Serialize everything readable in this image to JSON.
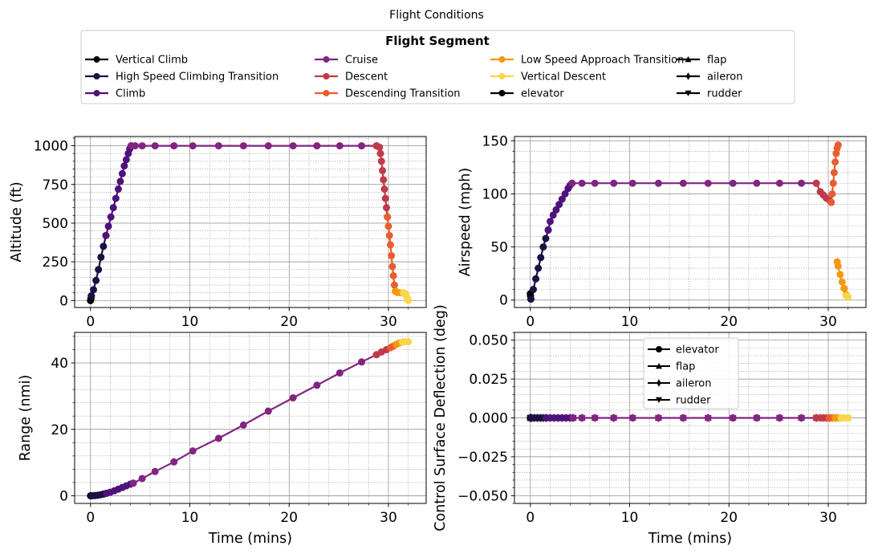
{
  "figure_title": "Flight Conditions",
  "legend": {
    "title": "Flight Segment",
    "columns": [
      [
        {
          "label": "Vertical Climb",
          "color": "#000004",
          "marker": "circle"
        },
        {
          "label": "High Speed Climbing Transition",
          "color": "#1c1044",
          "marker": "circle"
        },
        {
          "label": "Climb",
          "color": "#4f127b",
          "marker": "circle"
        }
      ],
      [
        {
          "label": "Cruise",
          "color": "#812581",
          "marker": "circle"
        },
        {
          "label": "Descent",
          "color": "#c03a49",
          "marker": "circle"
        },
        {
          "label": "Descending Transition",
          "color": "#e95d2f",
          "marker": "circle"
        }
      ],
      [
        {
          "label": "Low Speed Approach Transition",
          "color": "#f4990f",
          "marker": "circle"
        },
        {
          "label": "Vertical Descent",
          "color": "#fbd54a",
          "marker": "circle"
        },
        {
          "label": " elevator",
          "color": "#000000",
          "marker": "circle"
        }
      ],
      [
        {
          "label": " flap",
          "color": "#000000",
          "marker": "triangle-up"
        },
        {
          "label": " aileron",
          "color": "#000000",
          "marker": "diamond"
        },
        {
          "label": " rudder",
          "color": "#000000",
          "marker": "triangle-down"
        }
      ]
    ]
  },
  "chart_data": [
    {
      "type": "line",
      "id": "altitude",
      "xlabel": "",
      "ylabel": "Altitude (ft)",
      "xlim": [
        -1.6,
        33.8
      ],
      "ylim": [
        -45,
        1060
      ],
      "xticks": [
        0,
        10,
        20,
        30
      ],
      "xtick_labels": [
        "0",
        "10",
        "20",
        "30"
      ],
      "yticks": [
        0,
        250,
        500,
        750,
        1000
      ],
      "ytick_labels": [
        "0",
        "250",
        "500",
        "750",
        "1000"
      ],
      "grid": true,
      "segments": [
        {
          "name": "Vertical Climb",
          "color": "#000004",
          "x": [
            0,
            0.02,
            0.05,
            0.08
          ],
          "y": [
            0,
            5,
            15,
            30
          ]
        },
        {
          "name": "High Speed Climbing Transition",
          "color": "#1c1044",
          "x": [
            0.08,
            0.3,
            0.55,
            0.8,
            1.05,
            1.3,
            1.55
          ],
          "y": [
            30,
            70,
            130,
            200,
            280,
            350,
            420
          ]
        },
        {
          "name": "Climb",
          "color": "#4f127b",
          "x": [
            1.55,
            1.8,
            2.05,
            2.3,
            2.55,
            2.8,
            3.0,
            3.2,
            3.4,
            3.6,
            3.8,
            3.95,
            4.1
          ],
          "y": [
            420,
            480,
            540,
            600,
            660,
            720,
            770,
            820,
            870,
            910,
            950,
            980,
            1000
          ]
        },
        {
          "name": "Cruise",
          "color": "#812581",
          "x": [
            4.1,
            4.5,
            5.2,
            6.5,
            8.4,
            10.3,
            12.9,
            15.4,
            17.9,
            20.4,
            22.8,
            25.1,
            27.3,
            28.8
          ],
          "y": [
            1000,
            1000,
            1000,
            1000,
            1000,
            1000,
            1000,
            1000,
            1000,
            1000,
            1000,
            1000,
            1000,
            1000
          ]
        },
        {
          "name": "Descent",
          "color": "#c03a49",
          "x": [
            28.8,
            29.1,
            29.2,
            29.3,
            29.4,
            29.5,
            29.6,
            29.7,
            29.8,
            29.9
          ],
          "y": [
            1000,
            990,
            950,
            900,
            840,
            780,
            720,
            660,
            600,
            540
          ]
        },
        {
          "name": "Descending Transition",
          "color": "#e95d2f",
          "x": [
            29.9,
            30.0,
            30.1,
            30.2,
            30.3,
            30.4,
            30.5,
            30.6,
            30.7
          ],
          "y": [
            540,
            480,
            420,
            360,
            290,
            220,
            160,
            100,
            60
          ]
        },
        {
          "name": "Low Speed Approach Transition",
          "color": "#f4990f",
          "x": [
            30.7,
            30.9,
            31.2,
            31.5
          ],
          "y": [
            60,
            52,
            50,
            50
          ]
        },
        {
          "name": "Vertical Descent",
          "color": "#fbd54a",
          "x": [
            31.5,
            31.7,
            31.8,
            31.9,
            32.0
          ],
          "y": [
            50,
            45,
            30,
            15,
            0
          ]
        }
      ]
    },
    {
      "type": "line",
      "id": "airspeed",
      "xlabel": "",
      "ylabel": "Airspeed (mph)",
      "xlim": [
        -1.6,
        33.8
      ],
      "ylim": [
        -7,
        154
      ],
      "xticks": [
        0,
        10,
        20,
        30
      ],
      "xtick_labels": [
        "0",
        "10",
        "20",
        "30"
      ],
      "yticks": [
        0,
        50,
        100,
        150
      ],
      "ytick_labels": [
        "0",
        "50",
        "100",
        "150"
      ],
      "grid": true,
      "segments": [
        {
          "name": "Vertical Climb",
          "color": "#000004",
          "x": [
            0,
            0.02,
            0.05
          ],
          "y": [
            6,
            4,
            1
          ]
        },
        {
          "name": "High Speed Climbing Transition",
          "color": "#1c1044",
          "x": [
            0.05,
            0.3,
            0.55,
            0.8,
            1.05,
            1.3,
            1.55,
            1.8
          ],
          "y": [
            1,
            10,
            20,
            30,
            40,
            50,
            58,
            66
          ]
        },
        {
          "name": "Climb",
          "color": "#4f127b",
          "x": [
            1.8,
            2.0,
            2.3,
            2.6,
            2.9,
            3.2,
            3.5,
            3.8,
            4.0,
            4.2
          ],
          "y": [
            66,
            74,
            80,
            85,
            90,
            95,
            100,
            105,
            108,
            110
          ]
        },
        {
          "name": "Cruise",
          "color": "#812581",
          "x": [
            4.2,
            5.2,
            6.5,
            8.4,
            10.3,
            12.9,
            15.4,
            17.9,
            20.4,
            22.8,
            25.1,
            27.3,
            28.8
          ],
          "y": [
            110,
            110,
            110,
            110,
            110,
            110,
            110,
            110,
            110,
            110,
            110,
            110,
            110
          ]
        },
        {
          "name": "Descent",
          "color": "#c03a49",
          "x": [
            28.8,
            29.2,
            29.5,
            29.8,
            30.1,
            30.3
          ],
          "y": [
            110,
            102,
            99,
            96,
            94,
            92
          ]
        },
        {
          "name": "Descending Transition",
          "color": "#e95d2f",
          "x": [
            30.3,
            30.4,
            30.5,
            30.6,
            30.7,
            30.8,
            30.9,
            31.0
          ],
          "y": [
            92,
            100,
            110,
            120,
            130,
            138,
            143,
            146
          ]
        },
        {
          "name": "Low Speed Approach Transition",
          "color": "#f4990f",
          "x": [
            30.9,
            31.0,
            31.2,
            31.4,
            31.6,
            31.8
          ],
          "y": [
            36,
            32,
            24,
            17,
            11,
            5
          ]
        },
        {
          "name": "Vertical Descent",
          "color": "#fbd54a",
          "x": [
            31.8,
            32.0
          ],
          "y": [
            4,
            3
          ]
        }
      ]
    },
    {
      "type": "line",
      "id": "range",
      "xlabel": "Time (mins)",
      "ylabel": "Range (nmi)",
      "xlim": [
        -1.6,
        33.8
      ],
      "ylim": [
        -2.3,
        49.2
      ],
      "xticks": [
        0,
        10,
        20,
        30
      ],
      "xtick_labels": [
        "0",
        "10",
        "20",
        "30"
      ],
      "yticks": [
        0,
        20,
        40
      ],
      "ytick_labels": [
        "0",
        "20",
        "40"
      ],
      "grid": true,
      "segments": [
        {
          "name": "Vertical Climb",
          "color": "#000004",
          "x": [
            0,
            0.05,
            0.1
          ],
          "y": [
            0,
            0,
            0
          ]
        },
        {
          "name": "High Speed Climbing Transition",
          "color": "#1c1044",
          "x": [
            0.1,
            0.4,
            0.7,
            1.0,
            1.3,
            1.6
          ],
          "y": [
            0,
            0.05,
            0.15,
            0.3,
            0.5,
            0.75
          ]
        },
        {
          "name": "Climb",
          "color": "#4f127b",
          "x": [
            1.6,
            2.0,
            2.4,
            2.8,
            3.2,
            3.6,
            4.0,
            4.3
          ],
          "y": [
            0.75,
            1.1,
            1.5,
            2.0,
            2.5,
            3.0,
            3.5,
            3.8
          ]
        },
        {
          "name": "Cruise",
          "color": "#812581",
          "x": [
            4.3,
            5.2,
            6.5,
            8.4,
            10.3,
            12.9,
            15.4,
            17.9,
            20.4,
            22.8,
            25.1,
            27.3,
            28.8
          ],
          "y": [
            3.8,
            5.2,
            7.3,
            10.2,
            13.5,
            17.3,
            21.3,
            25.5,
            29.5,
            33.3,
            37.0,
            40.3,
            42.5
          ]
        },
        {
          "name": "Descent",
          "color": "#c03a49",
          "x": [
            28.8,
            29.3,
            29.8,
            30.2
          ],
          "y": [
            42.5,
            43.3,
            44.0,
            44.6
          ]
        },
        {
          "name": "Descending Transition",
          "color": "#e95d2f",
          "x": [
            30.2,
            30.5,
            30.8
          ],
          "y": [
            44.6,
            45.1,
            45.6
          ]
        },
        {
          "name": "Low Speed Approach Transition",
          "color": "#f4990f",
          "x": [
            30.8,
            31.1,
            31.4
          ],
          "y": [
            45.6,
            46.0,
            46.3
          ]
        },
        {
          "name": "Vertical Descent",
          "color": "#fbd54a",
          "x": [
            31.4,
            31.7,
            32.0
          ],
          "y": [
            46.3,
            46.4,
            46.4
          ]
        }
      ]
    },
    {
      "type": "line",
      "id": "control_surfaces",
      "xlabel": "Time (mins)",
      "ylabel": "Control Surface Deflection (deg)",
      "xlim": [
        -1.6,
        33.8
      ],
      "ylim": [
        -0.055,
        0.055
      ],
      "xticks": [
        0,
        10,
        20,
        30
      ],
      "xtick_labels": [
        "0",
        "10",
        "20",
        "30"
      ],
      "yticks": [
        -0.05,
        -0.025,
        0,
        0.025,
        0.05
      ],
      "ytick_labels": [
        "−0.050",
        "−0.025",
        "0.000",
        "0.025",
        "0.050"
      ],
      "grid": true,
      "inner_legend": [
        {
          "label": " elevator",
          "marker": "circle"
        },
        {
          "label": " flap",
          "marker": "triangle-up"
        },
        {
          "label": " aileron",
          "marker": "diamond"
        },
        {
          "label": " rudder",
          "marker": "triangle-down"
        }
      ],
      "segments": [
        {
          "name": "Vertical Climb",
          "color": "#000004",
          "x": [
            0,
            0.05,
            0.1
          ],
          "y": [
            0,
            0,
            0
          ]
        },
        {
          "name": "High Speed Climbing Transition",
          "color": "#1c1044",
          "x": [
            0.1,
            0.4,
            0.7,
            1.0,
            1.3,
            1.6
          ],
          "y": [
            0,
            0,
            0,
            0,
            0,
            0
          ]
        },
        {
          "name": "Climb",
          "color": "#4f127b",
          "x": [
            1.6,
            2.0,
            2.4,
            2.8,
            3.2,
            3.6,
            4.0,
            4.3
          ],
          "y": [
            0,
            0,
            0,
            0,
            0,
            0,
            0,
            0
          ]
        },
        {
          "name": "Cruise",
          "color": "#812581",
          "x": [
            4.3,
            5.2,
            6.5,
            8.4,
            10.3,
            12.9,
            15.4,
            17.9,
            20.4,
            22.8,
            25.1,
            27.3,
            28.8
          ],
          "y": [
            0,
            0,
            0,
            0,
            0,
            0,
            0,
            0,
            0,
            0,
            0,
            0,
            0
          ]
        },
        {
          "name": "Descent",
          "color": "#c03a49",
          "x": [
            28.8,
            29.2,
            29.5,
            29.8,
            30.1
          ],
          "y": [
            0,
            0,
            0,
            0,
            0
          ]
        },
        {
          "name": "Descending Transition",
          "color": "#e95d2f",
          "x": [
            30.1,
            30.4,
            30.7
          ],
          "y": [
            0,
            0,
            0
          ]
        },
        {
          "name": "Low Speed Approach Transition",
          "color": "#f4990f",
          "x": [
            30.7,
            31.0,
            31.3
          ],
          "y": [
            0,
            0,
            0
          ]
        },
        {
          "name": "Vertical Descent",
          "color": "#fbd54a",
          "x": [
            31.3,
            31.6,
            32.0
          ],
          "y": [
            0,
            0,
            0
          ]
        }
      ]
    }
  ]
}
